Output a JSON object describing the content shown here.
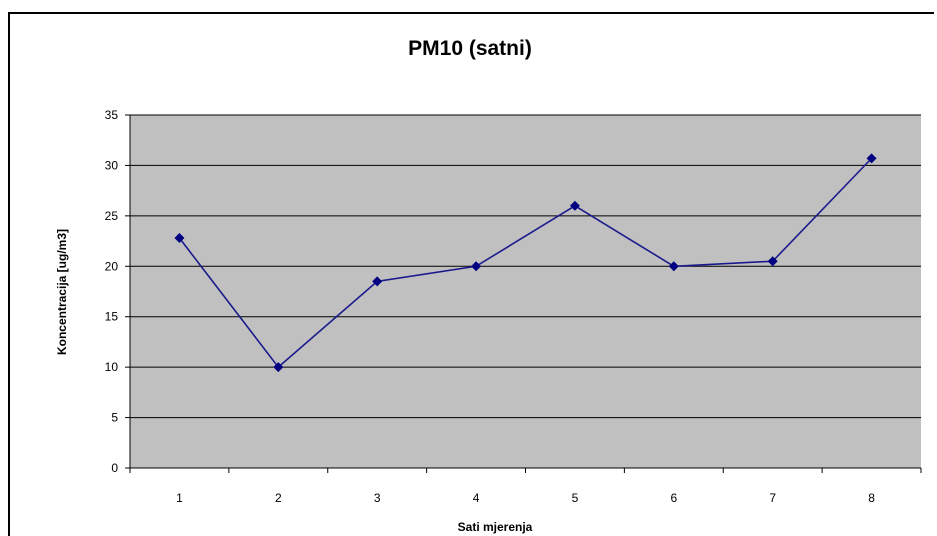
{
  "chart_data": {
    "type": "line",
    "title": "PM10 (satni)",
    "xlabel": "Sati mjerenja",
    "ylabel": "Koncentracija [ug/m3]",
    "categories": [
      "1",
      "2",
      "3",
      "4",
      "5",
      "6",
      "7",
      "8"
    ],
    "series": [
      {
        "values": [
          22.8,
          10.0,
          18.5,
          20.0,
          26.0,
          20.0,
          20.5,
          30.7
        ]
      }
    ],
    "ylim": [
      0,
      35
    ],
    "yticks": [
      "0",
      "5",
      "10",
      "15",
      "20",
      "25",
      "30",
      "35"
    ],
    "grid": true,
    "legend": "none",
    "colors": {
      "plot_background": "#c0c0c0",
      "line": "#1a1a8c",
      "marker": "#000080",
      "gridline": "#000000"
    }
  }
}
